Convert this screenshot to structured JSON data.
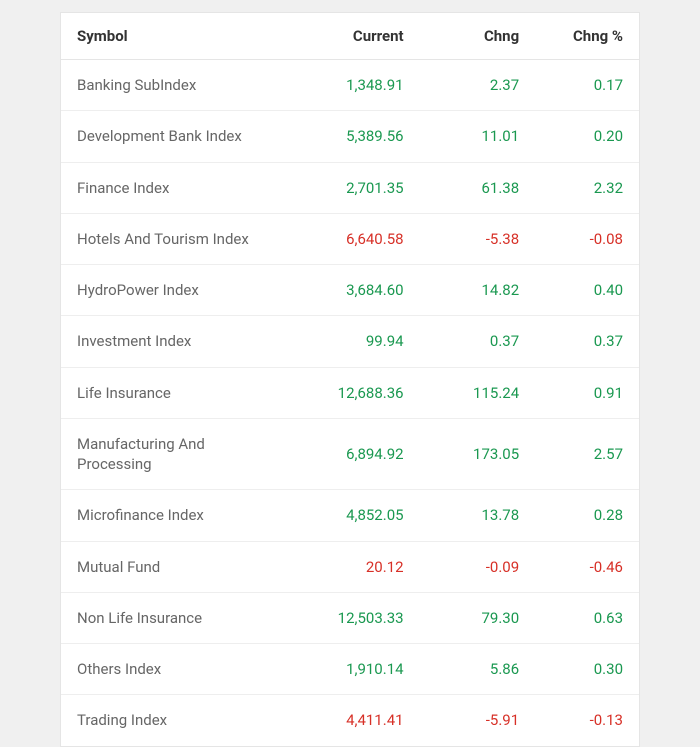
{
  "table": {
    "type": "table",
    "columns": [
      {
        "key": "symbol",
        "label": "Symbol",
        "align": "left",
        "class": "col-symbol"
      },
      {
        "key": "current",
        "label": "Current",
        "align": "right",
        "class": "col-current"
      },
      {
        "key": "chng",
        "label": "Chng",
        "align": "right",
        "class": "col-chng"
      },
      {
        "key": "chng_pct",
        "label": "Chng %",
        "align": "right",
        "class": "col-chngpct"
      }
    ],
    "colors": {
      "positive": "#1a9850",
      "negative": "#d73027",
      "symbol_text": "#666666",
      "header_text": "#333333",
      "border": "#e5e5e5",
      "row_border": "#eeeeee",
      "background": "#ffffff"
    },
    "font_size": 15,
    "rows": [
      {
        "symbol": "Banking SubIndex",
        "current": "1,348.91",
        "chng": "2.37",
        "chng_pct": "0.17",
        "direction": "pos"
      },
      {
        "symbol": "Development Bank Index",
        "current": "5,389.56",
        "chng": "11.01",
        "chng_pct": "0.20",
        "direction": "pos"
      },
      {
        "symbol": "Finance Index",
        "current": "2,701.35",
        "chng": "61.38",
        "chng_pct": "2.32",
        "direction": "pos"
      },
      {
        "symbol": "Hotels And Tourism Index",
        "current": "6,640.58",
        "chng": "-5.38",
        "chng_pct": "-0.08",
        "direction": "neg"
      },
      {
        "symbol": "HydroPower Index",
        "current": "3,684.60",
        "chng": "14.82",
        "chng_pct": "0.40",
        "direction": "pos"
      },
      {
        "symbol": "Investment Index",
        "current": "99.94",
        "chng": "0.37",
        "chng_pct": "0.37",
        "direction": "pos"
      },
      {
        "symbol": "Life Insurance",
        "current": "12,688.36",
        "chng": "115.24",
        "chng_pct": "0.91",
        "direction": "pos"
      },
      {
        "symbol": "Manufacturing And Processing",
        "current": "6,894.92",
        "chng": "173.05",
        "chng_pct": "2.57",
        "direction": "pos"
      },
      {
        "symbol": "Microfinance Index",
        "current": "4,852.05",
        "chng": "13.78",
        "chng_pct": "0.28",
        "direction": "pos"
      },
      {
        "symbol": "Mutual Fund",
        "current": "20.12",
        "chng": "-0.09",
        "chng_pct": "-0.46",
        "direction": "neg"
      },
      {
        "symbol": "Non Life Insurance",
        "current": "12,503.33",
        "chng": "79.30",
        "chng_pct": "0.63",
        "direction": "pos"
      },
      {
        "symbol": "Others Index",
        "current": "1,910.14",
        "chng": "5.86",
        "chng_pct": "0.30",
        "direction": "pos"
      },
      {
        "symbol": "Trading Index",
        "current": "4,411.41",
        "chng": "-5.91",
        "chng_pct": "-0.13",
        "direction": "neg"
      }
    ]
  }
}
